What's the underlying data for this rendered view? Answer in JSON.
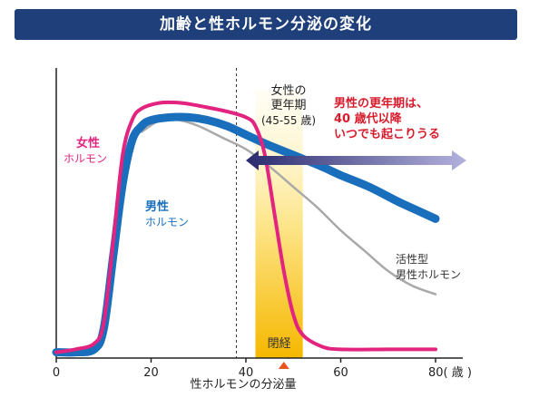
{
  "chart_data": {
    "type": "line",
    "title": "加齢と性ホルモン分泌の変化",
    "xlabel": "性ホルモンの分泌量",
    "x_unit": "80( 歳 )",
    "xlim": [
      0,
      85
    ],
    "ylim": [
      0,
      100
    ],
    "x_ticks": [
      "0",
      "20",
      "40",
      "60"
    ],
    "series": [
      {
        "name": "女性ホルモン",
        "name_line1": "女性",
        "name_line2": "ホルモン",
        "color": "#e2237f",
        "x": [
          0,
          4,
          8,
          10,
          12,
          14,
          16,
          18,
          22,
          26,
          30,
          36,
          40,
          42,
          44,
          46,
          48,
          50,
          52,
          56,
          60,
          70,
          80
        ],
        "y": [
          2,
          3,
          5,
          12,
          40,
          70,
          82,
          86,
          88,
          88,
          87,
          85,
          83,
          80,
          70,
          50,
          30,
          15,
          8,
          4,
          3,
          3,
          3
        ]
      },
      {
        "name": "男性ホルモン",
        "name_line1": "男性",
        "name_line2": "ホルモン",
        "color": "#1a6fbd",
        "x": [
          0,
          4,
          8,
          10,
          12,
          14,
          16,
          18,
          20,
          24,
          28,
          32,
          36,
          40,
          44,
          50,
          56,
          60,
          66,
          72,
          76,
          80
        ],
        "y": [
          2,
          2,
          3,
          10,
          35,
          60,
          75,
          80,
          82,
          83,
          83,
          82,
          80,
          77,
          74,
          70,
          66,
          63,
          59,
          54,
          51,
          48
        ]
      },
      {
        "name": "活性型男性ホルモン",
        "name_line1": "活性型",
        "name_line2": "男性ホルモン",
        "color": "#a9a9a9",
        "x": [
          18,
          22,
          26,
          30,
          35,
          40,
          45,
          50,
          55,
          60,
          65,
          70,
          75,
          80
        ],
        "y": [
          78,
          82,
          82,
          80,
          76,
          72,
          66,
          59,
          52,
          44,
          37,
          30,
          25,
          22
        ]
      }
    ],
    "annotations": {
      "female_menopause_label": [
        "女性の",
        "更年期",
        "(45-55 歳)"
      ],
      "male_menopause_label": [
        "男性の更年期は、",
        "40 歳代以降",
        "いつでも起こりうる"
      ],
      "menopause_band": "閉経",
      "female_menopause_range": [
        42,
        52
      ],
      "male_menopause_arrow_from": 40,
      "menopause_marker_x": 48,
      "divider_x": 38
    }
  },
  "colors": {
    "banner": "#1f3f7a",
    "female": "#e2237f",
    "male": "#1a6fbd",
    "active_male": "#a9a9a9",
    "highlight_text": "#d81b2c",
    "arrow_start": "#2a2a6e",
    "arrow_end": "#a9a8d8",
    "band_top": "#fff7cc",
    "band_bottom": "#f6b800",
    "marker": "#e8551f"
  }
}
